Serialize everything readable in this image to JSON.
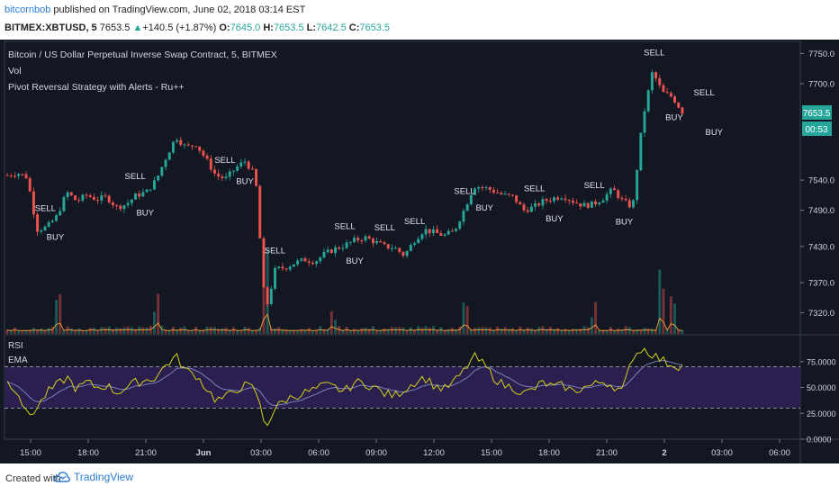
{
  "header": {
    "author": "bitcornbob",
    "published_text": " published on TradingView.com, June 02, 2018 03:14 EST",
    "symbol": "BITMEX:XBTUSD, 5",
    "last": "7653.5",
    "change": "+140.5 (+1.87%)",
    "open_label": "O:",
    "open": "7645.0",
    "high_label": "H:",
    "high": "7653.5",
    "low_label": "L:",
    "low": "7642.5",
    "close_label": "C:",
    "close": "7653.5"
  },
  "legend": {
    "title": "Bitcoin / US Dollar Perpetual Inverse Swap Contract, 5, BITMEX",
    "vol": "Vol",
    "strategy": "Pivot Reversal Strategy with Alerts - Ru++"
  },
  "rsi_legend": {
    "rsi": "RSI",
    "ema": "EMA"
  },
  "price_badge": "7653.5",
  "countdown_badge": "00:53",
  "footer": {
    "created": "Created with",
    "brand": "TradingView"
  },
  "colors": {
    "background": "#131722",
    "up": "#26a69a",
    "down": "#ef5350",
    "rsi": "#d4d018",
    "rsi_ema": "#7a7fbf",
    "rsi_band": "#2a1f4e",
    "vol_ma": "#e0983a"
  },
  "chart_data": {
    "type": "candlestick",
    "price_axis": {
      "ticks": [
        "7750.0",
        "7700.0",
        "7540.0",
        "7490.0",
        "7430.0",
        "7370.0",
        "7320.0"
      ],
      "range": [
        7285,
        7770
      ]
    },
    "rsi_axis": {
      "ticks": [
        "75.0000",
        "50.0000",
        "25.0000",
        "0.0000"
      ],
      "range": [
        0,
        100
      ],
      "bands": [
        30,
        70
      ]
    },
    "time_axis": [
      "15:00",
      "18:00",
      "21:00",
      "Jun",
      "03:00",
      "06:00",
      "09:00",
      "12:00",
      "15:00",
      "18:00",
      "21:00",
      "2",
      "03:00",
      "06:00"
    ],
    "price_path": [
      7548,
      7552,
      7545,
      7458,
      7462,
      7480,
      7520,
      7505,
      7515,
      7508,
      7512,
      7495,
      7500,
      7515,
      7520,
      7540,
      7578,
      7612,
      7594,
      7600,
      7575,
      7548,
      7542,
      7560,
      7572,
      7545,
      7320,
      7392,
      7395,
      7403,
      7408,
      7405,
      7418,
      7426,
      7432,
      7440,
      7445,
      7438,
      7430,
      7428,
      7415,
      7440,
      7458,
      7453,
      7448,
      7455,
      7490,
      7530,
      7528,
      7522,
      7515,
      7512,
      7490,
      7495,
      7505,
      7510,
      7514,
      7505,
      7498,
      7500,
      7510,
      7525,
      7505,
      7495,
      7640,
      7720,
      7685,
      7678,
      7653.5
    ],
    "signals": [
      {
        "text": "SELL",
        "index": 4,
        "side": "top"
      },
      {
        "text": "BUY",
        "index": 5,
        "side": "bottom"
      },
      {
        "text": "SELL",
        "index": 13,
        "side": "top"
      },
      {
        "text": "BUY",
        "index": 14,
        "side": "bottom"
      },
      {
        "text": "SELL",
        "index": 22,
        "side": "top"
      },
      {
        "text": "BUY",
        "index": 24,
        "side": "bottom"
      },
      {
        "text": "SELL",
        "index": 27,
        "side": "top"
      },
      {
        "text": "SELL",
        "index": 34,
        "side": "top"
      },
      {
        "text": "SELL",
        "index": 38,
        "side": "top"
      },
      {
        "text": "BUY",
        "index": 35,
        "side": "bottom"
      },
      {
        "text": "SELL",
        "index": 41,
        "side": "top"
      },
      {
        "text": "SELL",
        "index": 46,
        "side": "top"
      },
      {
        "text": "BUY",
        "index": 48,
        "side": "bottom"
      },
      {
        "text": "SELL",
        "index": 53,
        "side": "top"
      },
      {
        "text": "BUY",
        "index": 55,
        "side": "bottom"
      },
      {
        "text": "SELL",
        "index": 59,
        "side": "top"
      },
      {
        "text": "BUY",
        "index": 62,
        "side": "bottom"
      },
      {
        "text": "SELL",
        "index": 65,
        "side": "top"
      },
      {
        "text": "BUY",
        "index": 67,
        "side": "bottom"
      },
      {
        "text": "SELL",
        "index": 70,
        "side": "top"
      },
      {
        "text": "BUY",
        "index": 71,
        "side": "bottom"
      }
    ],
    "rsi_path": [
      55,
      48,
      22,
      30,
      45,
      52,
      60,
      48,
      55,
      50,
      52,
      45,
      50,
      55,
      57,
      60,
      72,
      80,
      66,
      62,
      50,
      38,
      40,
      48,
      52,
      48,
      12,
      30,
      38,
      42,
      45,
      48,
      52,
      50,
      46,
      55,
      54,
      50,
      44,
      42,
      48,
      55,
      60,
      52,
      48,
      55,
      66,
      80,
      72,
      60,
      52,
      50,
      44,
      48,
      55,
      50,
      52,
      46,
      50,
      52,
      56,
      52,
      46,
      80,
      88,
      82,
      76,
      72,
      70
    ],
    "volume_bursts": [
      {
        "index": 5,
        "value": 0.3
      },
      {
        "index": 15,
        "value": 0.25
      },
      {
        "index": 26,
        "value": 0.55
      },
      {
        "index": 33,
        "value": 0.15
      },
      {
        "index": 46,
        "value": 0.3
      },
      {
        "index": 59,
        "value": 0.2
      },
      {
        "index": 66,
        "value": 0.45
      },
      {
        "index": 67,
        "value": 0.3
      }
    ]
  }
}
